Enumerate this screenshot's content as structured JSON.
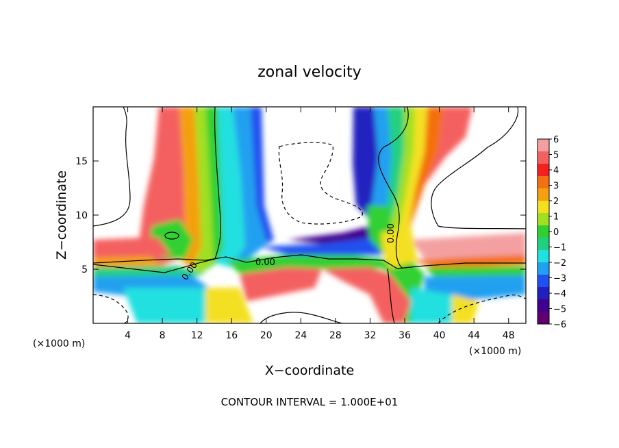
{
  "chart_data": {
    "type": "heatmap",
    "title": "zonal velocity",
    "xlabel": "X−coordinate",
    "ylabel": "Z−coordinate",
    "x_unit_left": "(×1000 m)",
    "x_unit_right": "(×1000 m)",
    "xlim": [
      0,
      50
    ],
    "ylim": [
      0,
      20
    ],
    "x_ticks": [
      "4",
      "8",
      "12",
      "16",
      "20",
      "24",
      "28",
      "32",
      "36",
      "40",
      "44",
      "48"
    ],
    "y_ticks": [
      "5",
      "10",
      "15"
    ],
    "footer": "CONTOUR INTERVAL = 1.000E+01",
    "colorbar": {
      "labels": [
        "6",
        "5",
        "4",
        "3",
        "2",
        "1",
        "0",
        "−1",
        "−2",
        "−3",
        "−4",
        "−5",
        "−6"
      ],
      "min": -6,
      "max": 6,
      "colors": [
        "#f4a0a0",
        "#f46060",
        "#f42020",
        "#f47010",
        "#f4a010",
        "#f4e020",
        "#a0e020",
        "#30d030",
        "#20d080",
        "#20e0e0",
        "#20a0f0",
        "#2050f0",
        "#2020c0",
        "#400090",
        "#600070"
      ]
    },
    "contour_labels": [
      "0.00",
      "0.00",
      "0.00"
    ],
    "features": [
      {
        "name": "positive jet 1",
        "x": 10,
        "z_top": 20,
        "sign": "+"
      },
      {
        "name": "near-zero band 1",
        "x": 14,
        "z_top": 20,
        "sign": "0"
      },
      {
        "name": "negative band 1",
        "x": 18,
        "z_top": 20,
        "sign": "-"
      },
      {
        "name": "negative column",
        "x": 32,
        "z_top": 20,
        "sign": "-"
      },
      {
        "name": "positive column",
        "x": 40,
        "z_top": 20,
        "sign": "+"
      },
      {
        "name": "low-level shear layer",
        "z": 5,
        "sign": "mixed"
      }
    ]
  }
}
